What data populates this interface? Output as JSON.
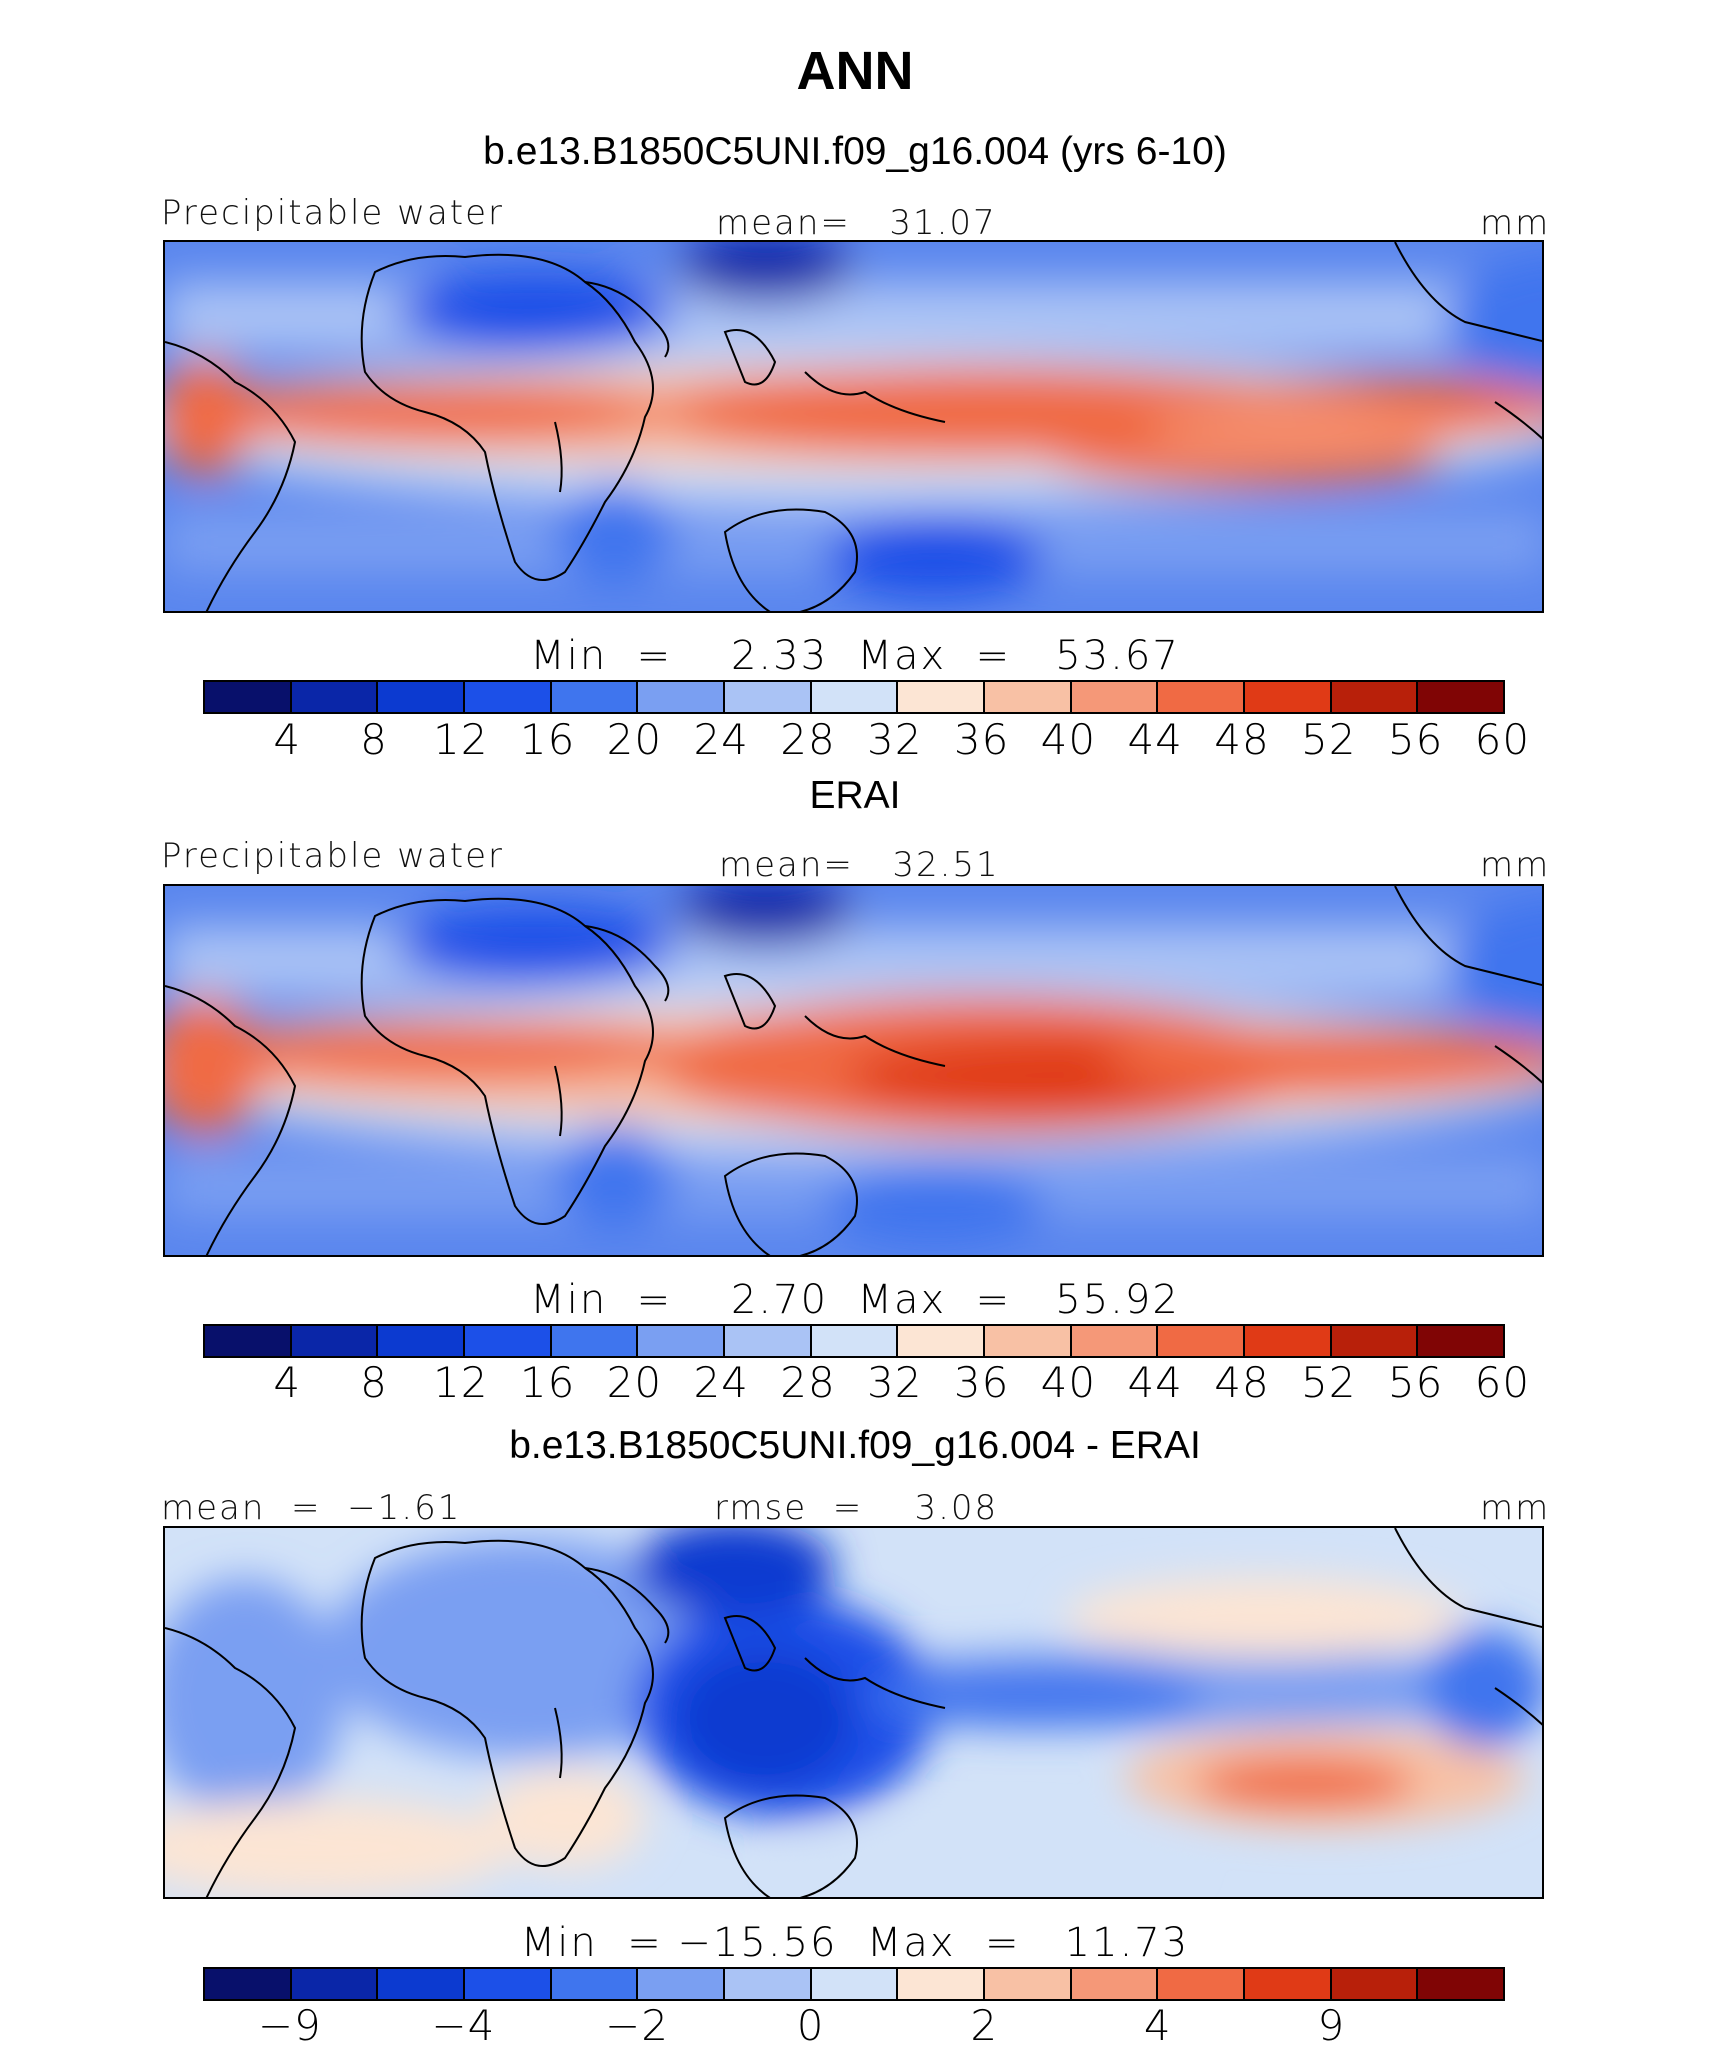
{
  "main_title": "ANN",
  "colors": {
    "precip_levels": [
      "#08106b",
      "#0a26a8",
      "#0c3ad0",
      "#1c50e8",
      "#3f75ee",
      "#7a9ff2",
      "#aac3f5",
      "#d2e2f8",
      "#fce5d4",
      "#f8c1a5",
      "#f59878",
      "#f06a44",
      "#e03a16",
      "#b8200a",
      "#800505"
    ],
    "diff_levels": [
      "#08106b",
      "#0a26a8",
      "#0c3ad0",
      "#1c50e8",
      "#3f75ee",
      "#7a9ff2",
      "#aac3f5",
      "#d2e2f8",
      "#fce5d4",
      "#f8c1a5",
      "#f59878",
      "#f06a44",
      "#e03a16",
      "#b8200a",
      "#800505"
    ]
  },
  "panels": [
    {
      "title": "b.e13.B1850C5UNI.f09_g16.004 (yrs 6-10)",
      "left_label": "Precipitable water",
      "center_label": "mean=   31.07",
      "right_label": "mm",
      "minmax": "Min  =    2.33  Max  =   53.67",
      "ticks": [
        "4",
        "8",
        "12",
        "16",
        "20",
        "24",
        "28",
        "32",
        "36",
        "40",
        "44",
        "48",
        "52",
        "56",
        "60"
      ]
    },
    {
      "title": "ERAI",
      "left_label": "Precipitable water",
      "center_label": "mean=   32.51",
      "right_label": "mm",
      "minmax": "Min  =    2.70  Max  =   55.92",
      "ticks": [
        "4",
        "8",
        "12",
        "16",
        "20",
        "24",
        "28",
        "32",
        "36",
        "40",
        "44",
        "48",
        "52",
        "56",
        "60"
      ]
    },
    {
      "title": "b.e13.B1850C5UNI.f09_g16.004 - ERAI",
      "left_label": "mean  =  −1.61",
      "center_label": "rmse  =    3.08",
      "right_label": "mm",
      "minmax": "Min  = −15.56  Max  =   11.73",
      "ticks": [
        "−9",
        "−4",
        "−2",
        "0",
        "2",
        "4",
        "9"
      ]
    }
  ],
  "chart_data": [
    {
      "type": "heatmap",
      "title": "b.e13.B1850C5UNI.f09_g16.004 (yrs 6-10)",
      "variable": "Precipitable water",
      "units": "mm",
      "mean": 31.07,
      "min": 2.33,
      "max": 53.67,
      "contour_levels": [
        4,
        8,
        12,
        16,
        20,
        24,
        28,
        32,
        36,
        40,
        44,
        48,
        52,
        56,
        60
      ],
      "grid": false
    },
    {
      "type": "heatmap",
      "title": "ERAI",
      "variable": "Precipitable water",
      "units": "mm",
      "mean": 32.51,
      "min": 2.7,
      "max": 55.92,
      "contour_levels": [
        4,
        8,
        12,
        16,
        20,
        24,
        28,
        32,
        36,
        40,
        44,
        48,
        52,
        56,
        60
      ],
      "grid": false
    },
    {
      "type": "heatmap",
      "title": "b.e13.B1850C5UNI.f09_g16.004 - ERAI",
      "units": "mm",
      "mean": -1.61,
      "rmse": 3.08,
      "min": -15.56,
      "max": 11.73,
      "contour_levels": [
        -9,
        -4,
        -2,
        0,
        2,
        4,
        9
      ],
      "grid": false
    }
  ]
}
